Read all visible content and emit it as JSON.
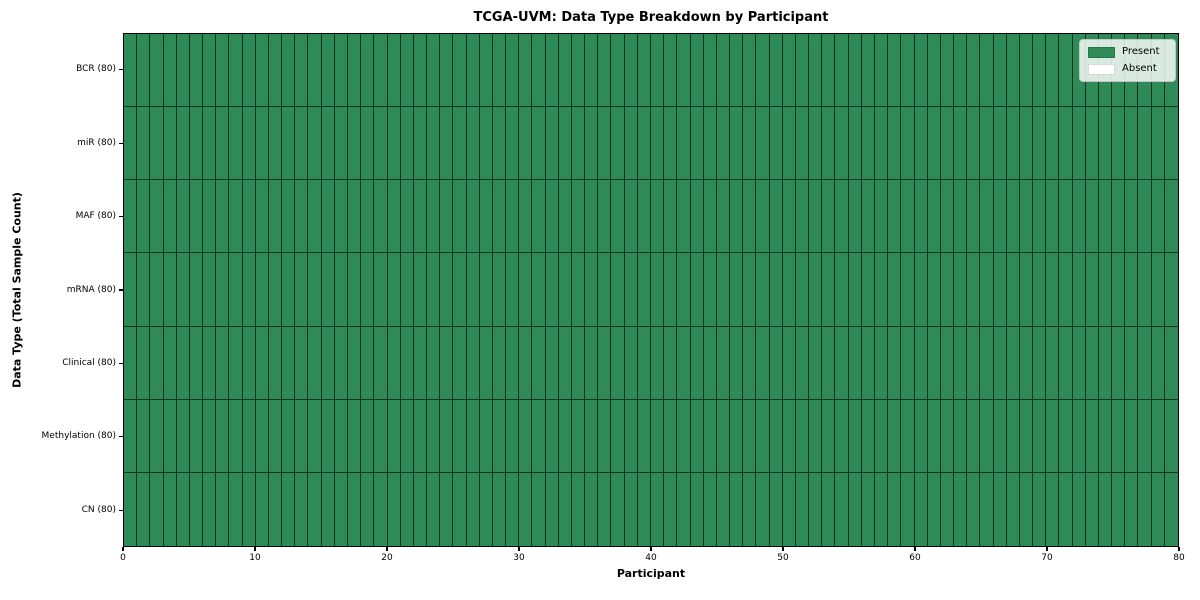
{
  "chart_data": {
    "type": "heatmap",
    "title": "TCGA-UVM: Data Type Breakdown by Participant",
    "xlabel": "Participant",
    "ylabel": "Data Type (Total Sample Count)",
    "x_range": [
      0,
      80
    ],
    "x_ticks": [
      0,
      10,
      20,
      30,
      40,
      50,
      60,
      70,
      80
    ],
    "n_participants": 80,
    "grid": "cell-borders",
    "legend_position": "upper right",
    "colors": {
      "present": "#2e8b57",
      "absent": "#ffffff",
      "cell_edge": "#1f1f1f",
      "spine": "#000000"
    },
    "legend": [
      {
        "label": "Present",
        "color": "#2e8b57"
      },
      {
        "label": "Absent",
        "color": "#ffffff"
      }
    ],
    "rows": [
      {
        "label": "BCR (80)",
        "present_count": 80,
        "absent_count": 0,
        "values": [
          1,
          1,
          1,
          1,
          1,
          1,
          1,
          1,
          1,
          1,
          1,
          1,
          1,
          1,
          1,
          1,
          1,
          1,
          1,
          1,
          1,
          1,
          1,
          1,
          1,
          1,
          1,
          1,
          1,
          1,
          1,
          1,
          1,
          1,
          1,
          1,
          1,
          1,
          1,
          1,
          1,
          1,
          1,
          1,
          1,
          1,
          1,
          1,
          1,
          1,
          1,
          1,
          1,
          1,
          1,
          1,
          1,
          1,
          1,
          1,
          1,
          1,
          1,
          1,
          1,
          1,
          1,
          1,
          1,
          1,
          1,
          1,
          1,
          1,
          1,
          1,
          1,
          1,
          1,
          1
        ]
      },
      {
        "label": "miR (80)",
        "present_count": 80,
        "absent_count": 0,
        "values": [
          1,
          1,
          1,
          1,
          1,
          1,
          1,
          1,
          1,
          1,
          1,
          1,
          1,
          1,
          1,
          1,
          1,
          1,
          1,
          1,
          1,
          1,
          1,
          1,
          1,
          1,
          1,
          1,
          1,
          1,
          1,
          1,
          1,
          1,
          1,
          1,
          1,
          1,
          1,
          1,
          1,
          1,
          1,
          1,
          1,
          1,
          1,
          1,
          1,
          1,
          1,
          1,
          1,
          1,
          1,
          1,
          1,
          1,
          1,
          1,
          1,
          1,
          1,
          1,
          1,
          1,
          1,
          1,
          1,
          1,
          1,
          1,
          1,
          1,
          1,
          1,
          1,
          1,
          1,
          1
        ]
      },
      {
        "label": "MAF (80)",
        "present_count": 80,
        "absent_count": 0,
        "values": [
          1,
          1,
          1,
          1,
          1,
          1,
          1,
          1,
          1,
          1,
          1,
          1,
          1,
          1,
          1,
          1,
          1,
          1,
          1,
          1,
          1,
          1,
          1,
          1,
          1,
          1,
          1,
          1,
          1,
          1,
          1,
          1,
          1,
          1,
          1,
          1,
          1,
          1,
          1,
          1,
          1,
          1,
          1,
          1,
          1,
          1,
          1,
          1,
          1,
          1,
          1,
          1,
          1,
          1,
          1,
          1,
          1,
          1,
          1,
          1,
          1,
          1,
          1,
          1,
          1,
          1,
          1,
          1,
          1,
          1,
          1,
          1,
          1,
          1,
          1,
          1,
          1,
          1,
          1,
          1
        ]
      },
      {
        "label": "mRNA (80)",
        "present_count": 80,
        "absent_count": 0,
        "values": [
          1,
          1,
          1,
          1,
          1,
          1,
          1,
          1,
          1,
          1,
          1,
          1,
          1,
          1,
          1,
          1,
          1,
          1,
          1,
          1,
          1,
          1,
          1,
          1,
          1,
          1,
          1,
          1,
          1,
          1,
          1,
          1,
          1,
          1,
          1,
          1,
          1,
          1,
          1,
          1,
          1,
          1,
          1,
          1,
          1,
          1,
          1,
          1,
          1,
          1,
          1,
          1,
          1,
          1,
          1,
          1,
          1,
          1,
          1,
          1,
          1,
          1,
          1,
          1,
          1,
          1,
          1,
          1,
          1,
          1,
          1,
          1,
          1,
          1,
          1,
          1,
          1,
          1,
          1,
          1
        ]
      },
      {
        "label": "Clinical (80)",
        "present_count": 80,
        "absent_count": 0,
        "values": [
          1,
          1,
          1,
          1,
          1,
          1,
          1,
          1,
          1,
          1,
          1,
          1,
          1,
          1,
          1,
          1,
          1,
          1,
          1,
          1,
          1,
          1,
          1,
          1,
          1,
          1,
          1,
          1,
          1,
          1,
          1,
          1,
          1,
          1,
          1,
          1,
          1,
          1,
          1,
          1,
          1,
          1,
          1,
          1,
          1,
          1,
          1,
          1,
          1,
          1,
          1,
          1,
          1,
          1,
          1,
          1,
          1,
          1,
          1,
          1,
          1,
          1,
          1,
          1,
          1,
          1,
          1,
          1,
          1,
          1,
          1,
          1,
          1,
          1,
          1,
          1,
          1,
          1,
          1,
          1
        ]
      },
      {
        "label": "Methylation (80)",
        "present_count": 80,
        "absent_count": 0,
        "values": [
          1,
          1,
          1,
          1,
          1,
          1,
          1,
          1,
          1,
          1,
          1,
          1,
          1,
          1,
          1,
          1,
          1,
          1,
          1,
          1,
          1,
          1,
          1,
          1,
          1,
          1,
          1,
          1,
          1,
          1,
          1,
          1,
          1,
          1,
          1,
          1,
          1,
          1,
          1,
          1,
          1,
          1,
          1,
          1,
          1,
          1,
          1,
          1,
          1,
          1,
          1,
          1,
          1,
          1,
          1,
          1,
          1,
          1,
          1,
          1,
          1,
          1,
          1,
          1,
          1,
          1,
          1,
          1,
          1,
          1,
          1,
          1,
          1,
          1,
          1,
          1,
          1,
          1,
          1,
          1
        ]
      },
      {
        "label": "CN (80)",
        "present_count": 80,
        "absent_count": 0,
        "values": [
          1,
          1,
          1,
          1,
          1,
          1,
          1,
          1,
          1,
          1,
          1,
          1,
          1,
          1,
          1,
          1,
          1,
          1,
          1,
          1,
          1,
          1,
          1,
          1,
          1,
          1,
          1,
          1,
          1,
          1,
          1,
          1,
          1,
          1,
          1,
          1,
          1,
          1,
          1,
          1,
          1,
          1,
          1,
          1,
          1,
          1,
          1,
          1,
          1,
          1,
          1,
          1,
          1,
          1,
          1,
          1,
          1,
          1,
          1,
          1,
          1,
          1,
          1,
          1,
          1,
          1,
          1,
          1,
          1,
          1,
          1,
          1,
          1,
          1,
          1,
          1,
          1,
          1,
          1,
          1
        ]
      }
    ]
  }
}
